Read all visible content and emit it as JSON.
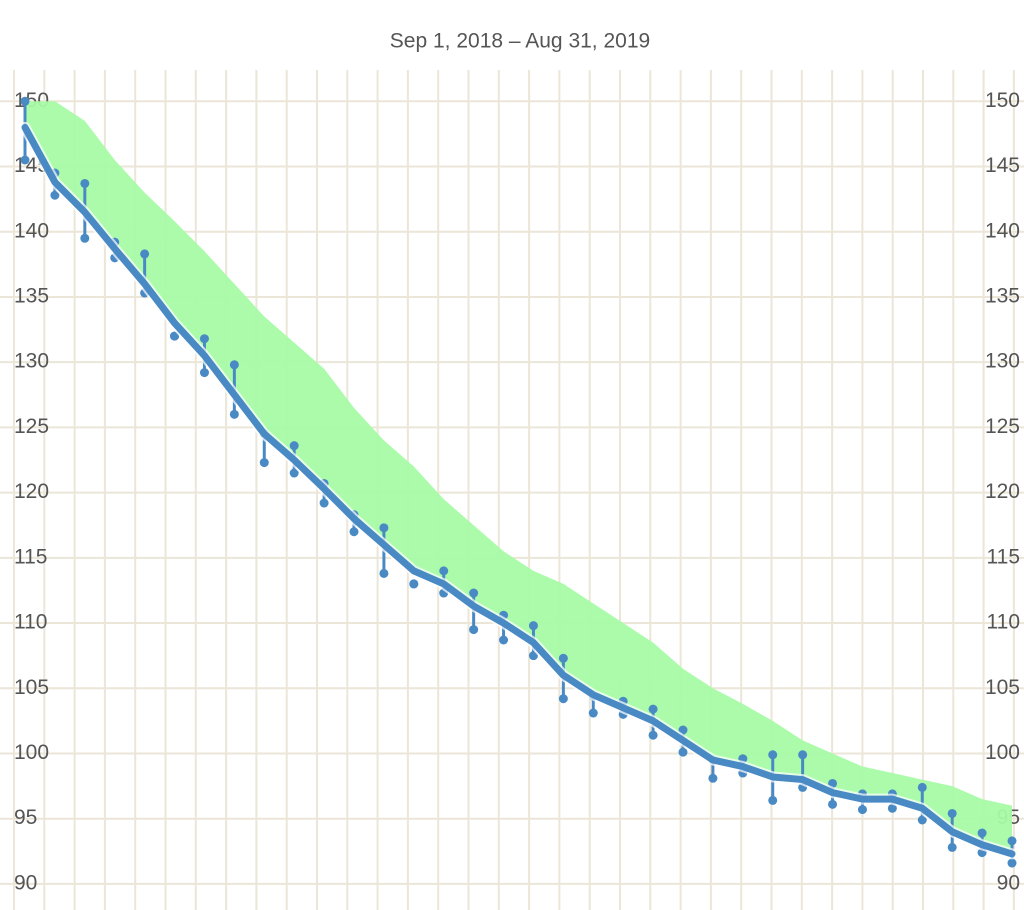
{
  "chart_data": {
    "type": "line",
    "title": "Sep 1, 2018 – Aug 31, 2019",
    "ylim": [
      88,
      152.4
    ],
    "yticks": [
      90,
      95,
      100,
      105,
      110,
      115,
      120,
      125,
      130,
      135,
      140,
      145,
      150
    ],
    "grid": true,
    "series": [
      {
        "color": "#4a8ac4",
        "values": [
          148,
          143.8,
          141.5,
          138.7,
          136,
          133,
          130.5,
          127.5,
          124.5,
          122.5,
          120.3,
          118,
          116,
          114,
          113,
          111.3,
          110,
          108.5,
          106,
          104.5,
          103.5,
          102.5,
          101,
          99.5,
          99,
          98.2,
          98,
          97,
          96.5,
          96.5,
          95.8,
          94,
          93,
          92.3
        ]
      },
      {
        "color": "#4a8ac4",
        "values": [
          150,
          144.5,
          143.7,
          139.2,
          138.3,
          132,
          131.8,
          129.8,
          124.5,
          123.6,
          120.7,
          118.3,
          117.3,
          113,
          114,
          112.3,
          110.6,
          109.8,
          107.3,
          104.4,
          104,
          103.4,
          101.8,
          99.5,
          99.6,
          99.9,
          99.9,
          97.7,
          96.9,
          96.9,
          97.4,
          95.4,
          93.9,
          93.3
        ]
      },
      {
        "color": "#4a8ac4",
        "values": [
          145.5,
          142.8,
          139.5,
          138,
          135.3,
          132,
          129.2,
          126,
          122.3,
          121.5,
          119.2,
          117,
          113.8,
          113,
          112.3,
          109.5,
          108.7,
          107.5,
          104.2,
          103.1,
          103,
          101.4,
          100.1,
          98.1,
          98.5,
          96.4,
          97.4,
          96.1,
          95.7,
          95.8,
          94.9,
          92.8,
          92.4,
          91.6
        ]
      },
      {
        "color": "#a6fba6",
        "values": [
          150,
          150,
          148.5,
          145.5,
          143,
          140.8,
          138.5,
          136,
          133.5,
          131.5,
          129.5,
          126.5,
          124,
          122,
          119.5,
          117.5,
          115.5,
          114,
          113,
          111.5,
          110,
          108.5,
          106.5,
          105,
          103.8,
          102.5,
          101,
          100,
          99,
          98.5,
          98,
          97.5,
          96.5,
          96
        ]
      }
    ]
  }
}
